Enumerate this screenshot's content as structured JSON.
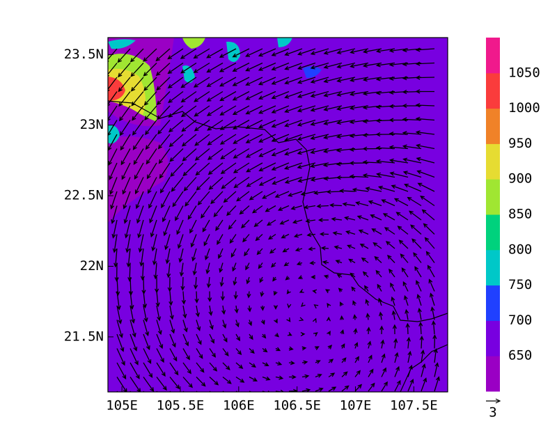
{
  "map": {
    "xlim": [
      104.88,
      107.79
    ],
    "ylim": [
      21.11,
      23.62
    ],
    "lon_ticks": [
      {
        "value": 105,
        "label": "105E"
      },
      {
        "value": 105.5,
        "label": "105.5E"
      },
      {
        "value": 106,
        "label": "106E"
      },
      {
        "value": 106.5,
        "label": "106.5E"
      },
      {
        "value": 107,
        "label": "107E"
      },
      {
        "value": 107.5,
        "label": "107.5E"
      }
    ],
    "lat_ticks": [
      {
        "value": 21.5,
        "label": "21.5N"
      },
      {
        "value": 22,
        "label": "22N"
      },
      {
        "value": 22.5,
        "label": "22.5N"
      },
      {
        "value": 23,
        "label": "23N"
      },
      {
        "value": 23.5,
        "label": "23.5N"
      }
    ],
    "grid": true,
    "colorbar": {
      "levels": [
        650,
        700,
        750,
        800,
        850,
        900,
        950,
        1000,
        1050
      ],
      "colors": [
        "#9a00c4",
        "#7800e0",
        "#2040ff",
        "#00c8c8",
        "#00d27d",
        "#a0e632",
        "#e6dc32",
        "#f08228",
        "#fa3c3c",
        "#f0198c"
      ]
    },
    "reference_vector": 3
  }
}
